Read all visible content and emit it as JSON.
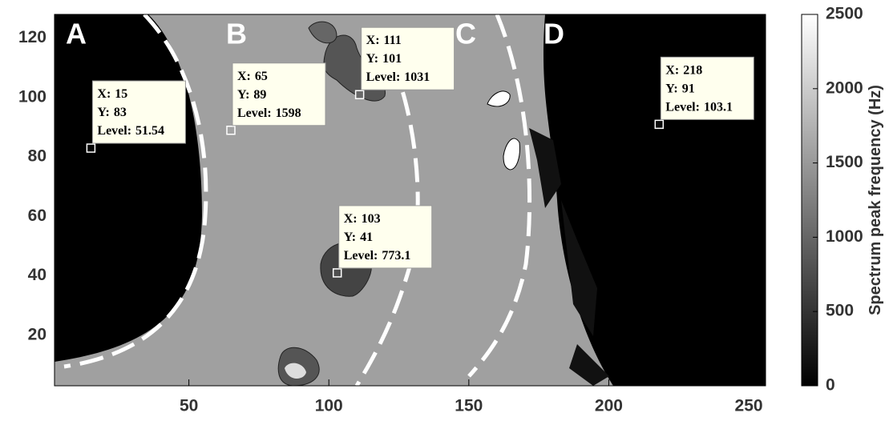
{
  "chart_data": {
    "type": "contour",
    "xlim": [
      2,
      256
    ],
    "ylim": [
      3,
      128
    ],
    "xticks": [
      50,
      100,
      150,
      200,
      250
    ],
    "yticks": [
      20,
      40,
      60,
      80,
      100,
      120
    ],
    "region_labels": [
      "A",
      "B",
      "C",
      "D"
    ],
    "datatip_fields": [
      "X:",
      "Y:",
      "Level:"
    ],
    "datatips": [
      {
        "x": 15,
        "y": 83,
        "level": 51.54
      },
      {
        "x": 65,
        "y": 89,
        "level": 1598
      },
      {
        "x": 111,
        "y": 101,
        "level": 1031
      },
      {
        "x": 103,
        "y": 41,
        "level": 773.1
      },
      {
        "x": 218,
        "y": 91,
        "level": 103.1
      }
    ],
    "colorbar": {
      "label": "Spectrum peak frequency (Hz)",
      "lim": [
        0,
        2500
      ],
      "ticks": [
        0,
        500,
        1000,
        1500,
        2000,
        2500
      ]
    }
  }
}
